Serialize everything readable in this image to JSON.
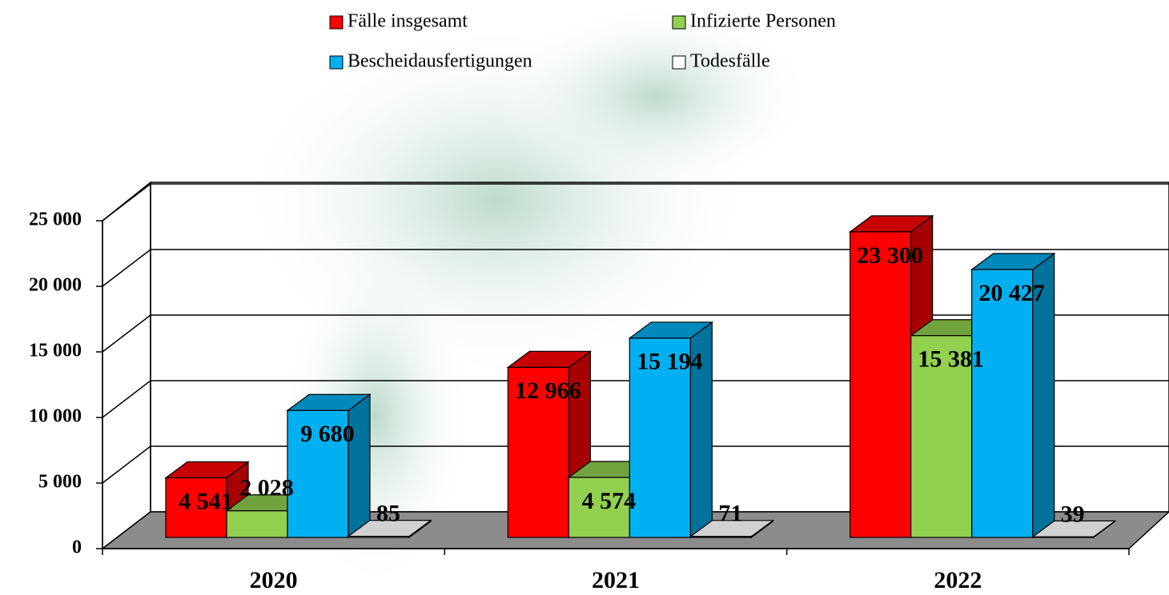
{
  "chart_data": {
    "type": "bar3d",
    "categories": [
      "2020",
      "2021",
      "2022"
    ],
    "series": [
      {
        "name": "Fälle insgesamt",
        "color": "#ff0000",
        "values": [
          4541,
          12966,
          23300
        ],
        "value_labels": [
          "4 541",
          "12 966",
          "23 300"
        ]
      },
      {
        "name": "Infizierte Personen",
        "color": "#92d050",
        "values": [
          2028,
          4574,
          15381
        ],
        "value_labels": [
          "2 028",
          "4 574",
          "15 381"
        ]
      },
      {
        "name": "Bescheidausfertigungen",
        "color": "#00b0f0",
        "values": [
          9680,
          15194,
          20427
        ],
        "value_labels": [
          "9 680",
          "15 194",
          "20 427"
        ]
      },
      {
        "name": "Todesfälle",
        "color": "#ffffff",
        "values": [
          85,
          71,
          39
        ],
        "value_labels": [
          "85",
          "71",
          "39"
        ]
      }
    ],
    "ylim": [
      0,
      25000
    ],
    "yticks": [
      0,
      {
        "value": 5000,
        "label": "5 000"
      },
      {
        "value": 10000,
        "label": "10 000"
      },
      {
        "value": 15000,
        "label": "15 000"
      },
      {
        "value": 20000,
        "label": "20 000"
      },
      {
        "value": 25000,
        "label": "25 000"
      }
    ],
    "grid": true,
    "legend": "top"
  }
}
